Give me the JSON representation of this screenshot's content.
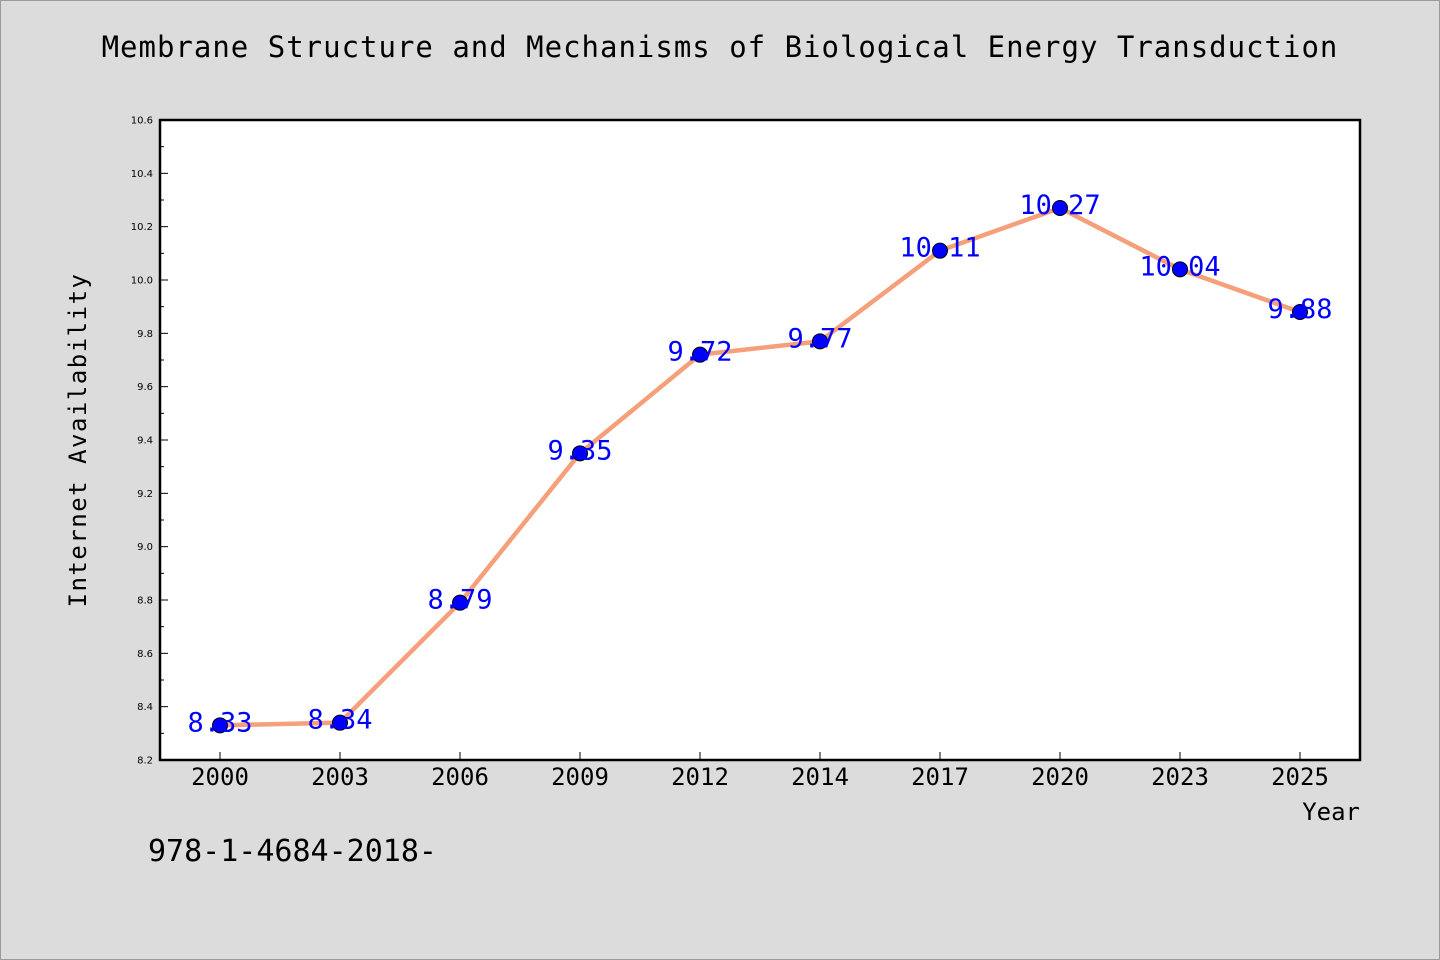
{
  "chart_data": {
    "type": "line",
    "title": "Membrane Structure and Mechanisms of Biological Energy Transduction",
    "xlabel": "Year",
    "ylabel": "Internet Availability",
    "categories": [
      "2000",
      "2003",
      "2006",
      "2009",
      "2012",
      "2014",
      "2017",
      "2020",
      "2023",
      "2025"
    ],
    "series": [
      {
        "values": [
          8.33,
          8.34,
          8.79,
          9.35,
          9.72,
          9.77,
          10.11,
          10.27,
          10.04,
          9.88
        ],
        "data_labels": [
          "8.33",
          "8.34",
          "8.79",
          "9.35",
          "9.72",
          "9.77",
          "10.11",
          "10.27",
          "10.04",
          "9.88"
        ],
        "line_color": "#f5a07a",
        "marker_color": "#0000ff"
      }
    ],
    "ylim": [
      8.2,
      10.6
    ],
    "yticks": [
      8.2,
      8.4,
      8.6,
      8.8,
      9.0,
      9.2,
      9.4,
      9.6,
      9.8,
      10.0,
      10.2,
      10.4,
      10.6
    ],
    "ytick_labels": [
      "8.2",
      "8.4",
      "8.6",
      "8.8",
      "9.0",
      "9.2",
      "9.4",
      "9.6",
      "9.8",
      "10.0",
      "10.2",
      "10.4",
      "10.6"
    ],
    "grid": false,
    "legend": "none",
    "label_color": "#0000ff",
    "plot_background": "#ffffff",
    "page_background": "#dcdcdc"
  },
  "footer": {
    "text": "978-1-4684-2018-"
  }
}
